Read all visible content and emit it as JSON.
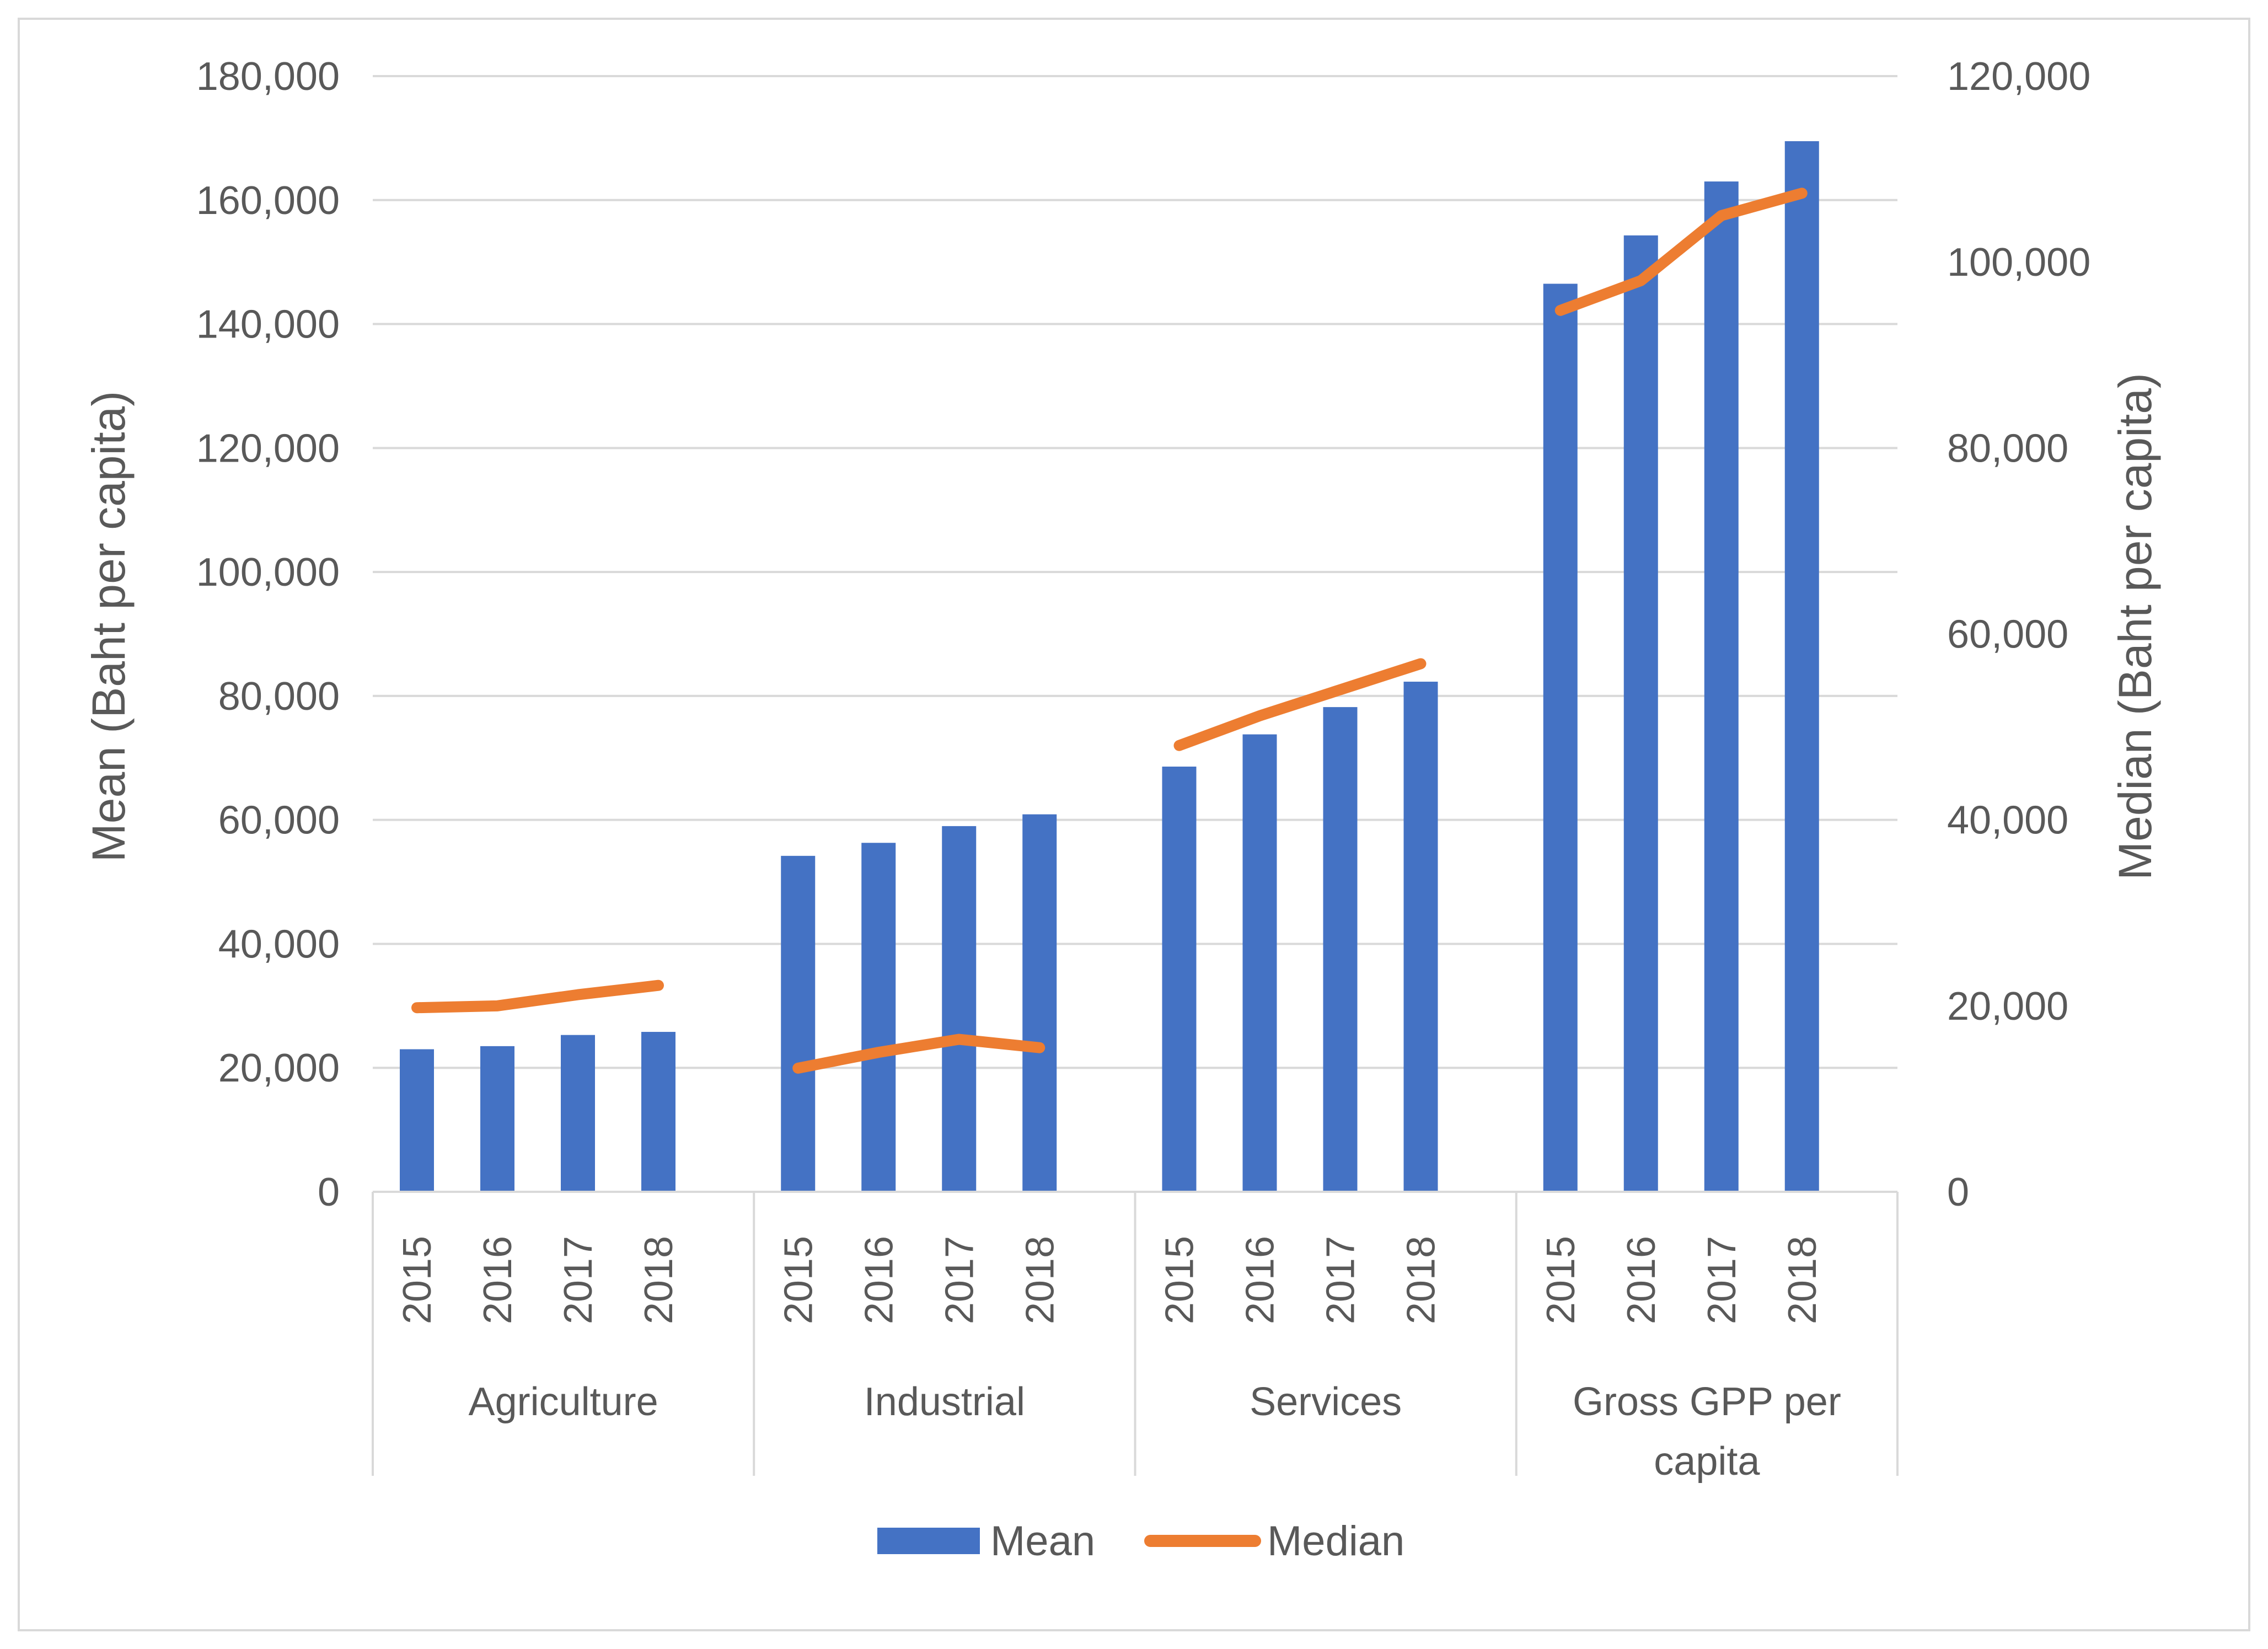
{
  "chart_data": {
    "type": "bar",
    "title": "",
    "groups": [
      {
        "name": "Agriculture",
        "label_lines": [
          "Agriculture"
        ]
      },
      {
        "name": "Industrial",
        "label_lines": [
          "Industrial"
        ]
      },
      {
        "name": "Services",
        "label_lines": [
          "Services"
        ]
      },
      {
        "name": "Gross GPP per capita",
        "label_lines": [
          "Gross GPP per",
          "capita"
        ]
      }
    ],
    "years": [
      "2015",
      "2016",
      "2017",
      "2018"
    ],
    "series": [
      {
        "name": "Mean",
        "type": "bar",
        "axis": "left",
        "color": "#4472C4",
        "values": [
          [
            23000,
            23500,
            25300,
            25800
          ],
          [
            54200,
            56300,
            59000,
            60900
          ],
          [
            68600,
            73800,
            78200,
            82300
          ],
          [
            146500,
            154300,
            163000,
            169500
          ]
        ]
      },
      {
        "name": "Median",
        "type": "line",
        "axis": "right",
        "color": "#ED7D31",
        "values": [
          [
            19800,
            20000,
            21200,
            22200
          ],
          [
            13300,
            15000,
            16400,
            15500
          ],
          [
            48000,
            51200,
            54000,
            56800
          ],
          [
            94800,
            98000,
            105000,
            107400
          ]
        ]
      }
    ],
    "y_left": {
      "label": "Mean (Baht per capita)",
      "range": [
        0,
        180000
      ],
      "ticks": [
        "0",
        "20,000",
        "40,000",
        "60,000",
        "80,000",
        "100,000",
        "120,000",
        "140,000",
        "160,000",
        "180,000"
      ]
    },
    "y_right": {
      "label": "Median (Baht per capita)",
      "range": [
        0,
        120000
      ],
      "ticks": [
        "0",
        "20,000",
        "40,000",
        "60,000",
        "80,000",
        "100,000",
        "120,000"
      ]
    },
    "grid": true,
    "legend": {
      "position": "bottom",
      "entries": [
        "Mean",
        "Median"
      ]
    },
    "colors": {
      "grid": "#d9d9d9",
      "text": "#595959",
      "axis": "#d9d9d9"
    }
  }
}
